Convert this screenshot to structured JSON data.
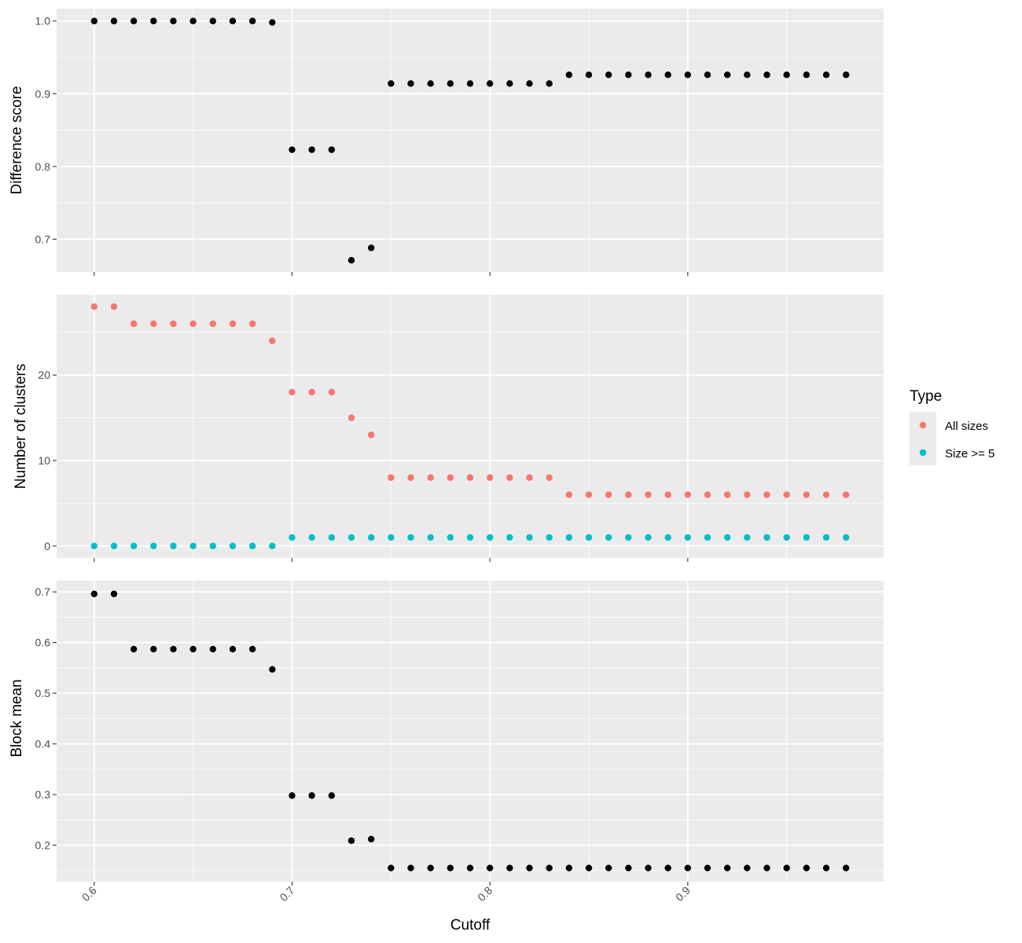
{
  "chart_data": [
    {
      "type": "scatter",
      "ylabel": "Difference score",
      "ylim": [
        0.655,
        1.017
      ],
      "yticks": [
        0.7,
        0.8,
        0.9,
        1.0
      ],
      "ytick_labels": [
        "0.7",
        "0.8",
        "0.9",
        "1.0"
      ],
      "grid": true,
      "series": [
        {
          "color": "#000000",
          "x": [
            0.6,
            0.61,
            0.62,
            0.63,
            0.64,
            0.65,
            0.66,
            0.67,
            0.68,
            0.69,
            0.7,
            0.71,
            0.72,
            0.73,
            0.74,
            0.75,
            0.76,
            0.77,
            0.78,
            0.79,
            0.8,
            0.81,
            0.82,
            0.83,
            0.84,
            0.85,
            0.86,
            0.87,
            0.88,
            0.89,
            0.9,
            0.91,
            0.92,
            0.93,
            0.94,
            0.95,
            0.96,
            0.97,
            0.98
          ],
          "y": [
            1.0,
            1.0,
            1.0,
            1.0,
            1.0,
            1.0,
            1.0,
            1.0,
            1.0,
            0.998,
            0.823,
            0.823,
            0.823,
            0.671,
            0.688,
            0.914,
            0.914,
            0.914,
            0.914,
            0.914,
            0.914,
            0.914,
            0.914,
            0.914,
            0.926,
            0.926,
            0.926,
            0.926,
            0.926,
            0.926,
            0.926,
            0.926,
            0.926,
            0.926,
            0.926,
            0.926,
            0.926,
            0.926,
            0.926
          ]
        }
      ]
    },
    {
      "type": "scatter",
      "ylabel": "Number of clusters",
      "ylim": [
        -1.4,
        29.4
      ],
      "yticks": [
        0,
        10,
        20
      ],
      "ytick_labels": [
        "0",
        "10",
        "20"
      ],
      "grid": true,
      "legend": {
        "title": "Type",
        "placement": "right"
      },
      "series": [
        {
          "name": "All sizes",
          "color": "#F8766D",
          "x": [
            0.6,
            0.61,
            0.62,
            0.63,
            0.64,
            0.65,
            0.66,
            0.67,
            0.68,
            0.69,
            0.7,
            0.71,
            0.72,
            0.73,
            0.74,
            0.75,
            0.76,
            0.77,
            0.78,
            0.79,
            0.8,
            0.81,
            0.82,
            0.83,
            0.84,
            0.85,
            0.86,
            0.87,
            0.88,
            0.89,
            0.9,
            0.91,
            0.92,
            0.93,
            0.94,
            0.95,
            0.96,
            0.97,
            0.98
          ],
          "y": [
            28,
            28,
            26,
            26,
            26,
            26,
            26,
            26,
            26,
            24,
            18,
            18,
            18,
            15,
            13,
            8,
            8,
            8,
            8,
            8,
            8,
            8,
            8,
            8,
            6,
            6,
            6,
            6,
            6,
            6,
            6,
            6,
            6,
            6,
            6,
            6,
            6,
            6,
            6
          ]
        },
        {
          "name": "Size >= 5",
          "color": "#00BFC4",
          "x": [
            0.6,
            0.61,
            0.62,
            0.63,
            0.64,
            0.65,
            0.66,
            0.67,
            0.68,
            0.69,
            0.7,
            0.71,
            0.72,
            0.73,
            0.74,
            0.75,
            0.76,
            0.77,
            0.78,
            0.79,
            0.8,
            0.81,
            0.82,
            0.83,
            0.84,
            0.85,
            0.86,
            0.87,
            0.88,
            0.89,
            0.9,
            0.91,
            0.92,
            0.93,
            0.94,
            0.95,
            0.96,
            0.97,
            0.98
          ],
          "y": [
            0,
            0,
            0,
            0,
            0,
            0,
            0,
            0,
            0,
            0,
            1,
            1,
            1,
            1,
            1,
            1,
            1,
            1,
            1,
            1,
            1,
            1,
            1,
            1,
            1,
            1,
            1,
            1,
            1,
            1,
            1,
            1,
            1,
            1,
            1,
            1,
            1,
            1,
            1
          ]
        }
      ]
    },
    {
      "type": "scatter",
      "ylabel": "Block mean",
      "xlabel": "Cutoff",
      "xlim": [
        0.581,
        0.999
      ],
      "xticks": [
        0.6,
        0.7,
        0.8,
        0.9
      ],
      "xtick_labels": [
        "0.6",
        "0.7",
        "0.8",
        "0.9"
      ],
      "ylim": [
        0.128,
        0.722
      ],
      "yticks": [
        0.2,
        0.3,
        0.4,
        0.5,
        0.6,
        0.7
      ],
      "ytick_labels": [
        "0.2",
        "0.3",
        "0.4",
        "0.5",
        "0.6",
        "0.7"
      ],
      "grid": true,
      "series": [
        {
          "color": "#000000",
          "x": [
            0.6,
            0.61,
            0.62,
            0.63,
            0.64,
            0.65,
            0.66,
            0.67,
            0.68,
            0.69,
            0.7,
            0.71,
            0.72,
            0.73,
            0.74,
            0.75,
            0.76,
            0.77,
            0.78,
            0.79,
            0.8,
            0.81,
            0.82,
            0.83,
            0.84,
            0.85,
            0.86,
            0.87,
            0.88,
            0.89,
            0.9,
            0.91,
            0.92,
            0.93,
            0.94,
            0.95,
            0.96,
            0.97,
            0.98
          ],
          "y": [
            0.696,
            0.696,
            0.587,
            0.587,
            0.587,
            0.587,
            0.587,
            0.587,
            0.587,
            0.547,
            0.298,
            0.298,
            0.298,
            0.209,
            0.212,
            0.155,
            0.155,
            0.155,
            0.155,
            0.155,
            0.155,
            0.155,
            0.155,
            0.155,
            0.155,
            0.155,
            0.155,
            0.155,
            0.155,
            0.155,
            0.155,
            0.155,
            0.155,
            0.155,
            0.155,
            0.155,
            0.155,
            0.155,
            0.155
          ]
        }
      ]
    }
  ]
}
